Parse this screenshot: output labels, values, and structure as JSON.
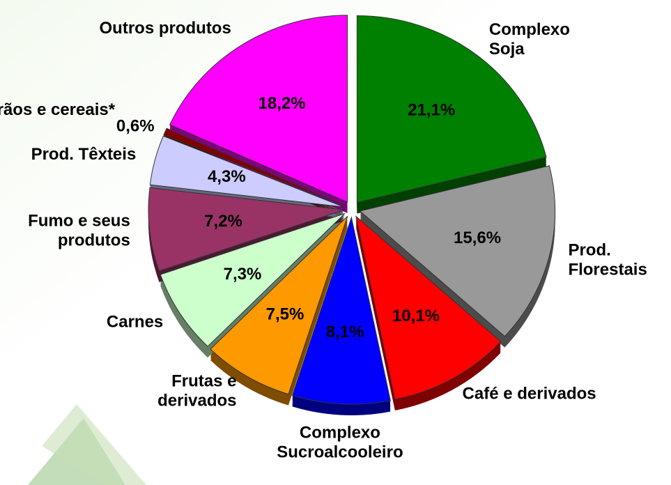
{
  "chart_data": {
    "type": "pie",
    "categories": [
      "Complexo\nSoja",
      "Prod.\nFlorestais",
      "Café e derivados",
      "Complexo\nSucroalcooleiro",
      "Frutas e\nderivados",
      "Carnes",
      "Fumo e seus\nprodutos",
      "Prod. Têxteis",
      "Grãos e cereais*",
      "Outros produtos"
    ],
    "values": [
      21.1,
      15.6,
      10.1,
      8.1,
      7.5,
      7.3,
      7.2,
      4.3,
      0.6,
      18.2
    ],
    "value_labels": [
      "21,1%",
      "15,6%",
      "10,1%",
      "8,1%",
      "7,5%",
      "7,3%",
      "7,2%",
      "4,3%",
      "0,6%",
      "18,2%"
    ],
    "colors": [
      "#008000",
      "#999999",
      "#ff0000",
      "#0000ff",
      "#ff9900",
      "#ccffcc",
      "#993366",
      "#ccccff",
      "#800000",
      "#ff00ff"
    ]
  }
}
